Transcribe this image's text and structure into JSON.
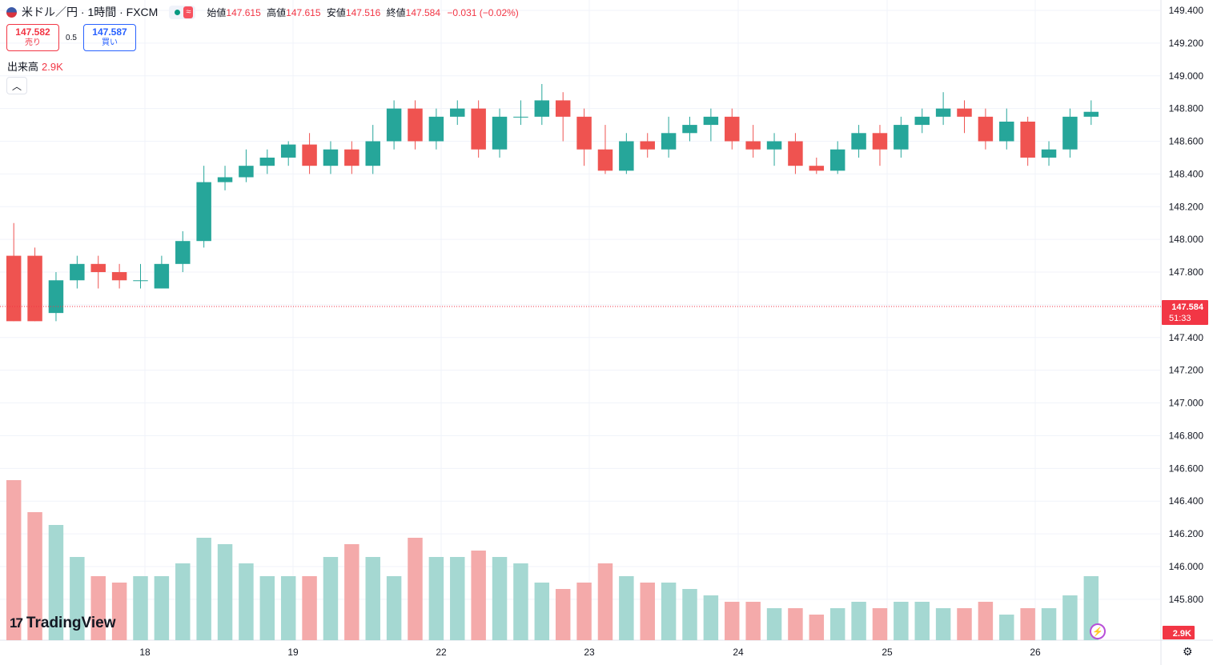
{
  "header": {
    "symbol": "米ドル／円 · 1時間 · FXCM",
    "badge": "≈",
    "ohlc": [
      {
        "label": "始値",
        "value": "147.615"
      },
      {
        "label": "高値",
        "value": "147.615"
      },
      {
        "label": "安値",
        "value": "147.516"
      },
      {
        "label": "終値",
        "value": "147.584"
      }
    ],
    "change": "−0.031 (−0.02%)"
  },
  "trade": {
    "sell_price": "147.582",
    "sell_label": "売り",
    "spread": "0.5",
    "buy_price": "147.587",
    "buy_label": "買い"
  },
  "volume_indicator": {
    "label": "出来高",
    "value": "2.9K"
  },
  "price_axis": {
    "labels": [
      "149.400",
      "149.200",
      "149.000",
      "148.800",
      "148.600",
      "148.400",
      "148.200",
      "148.000",
      "147.800",
      "147.600",
      "147.400",
      "147.200",
      "147.000",
      "146.800",
      "146.600",
      "146.400",
      "146.200",
      "146.000",
      "145.800"
    ],
    "current_price": "147.584",
    "countdown": "51:33",
    "volume_tag": "2.9K"
  },
  "time_axis": {
    "labels": [
      "18",
      "19",
      "22",
      "23",
      "24",
      "25",
      "26"
    ]
  },
  "logo": {
    "mark": "17",
    "text": "TradingView"
  },
  "colors": {
    "up": "#26a69a",
    "down": "#ef5350",
    "volume_up": "#a5d8d2",
    "volume_down": "#f4aaaa",
    "grid": "#f0f3fa",
    "accent": "#f23645"
  },
  "chart_data": {
    "type": "candlestick",
    "title": "米ドル／円 · 1時間 · FXCM",
    "ylim": [
      145.7,
      149.45
    ],
    "grid": true,
    "day_separators": [
      "18",
      "19",
      "22",
      "23",
      "24",
      "25",
      "26"
    ],
    "candles": [
      [
        147.9,
        147.5,
        148.1,
        147.5,
        2.5
      ],
      [
        147.9,
        147.5,
        147.95,
        147.5,
        2.0
      ],
      [
        147.55,
        147.75,
        147.8,
        147.5,
        1.8
      ],
      [
        147.75,
        147.85,
        147.9,
        147.7,
        1.3
      ],
      [
        147.85,
        147.8,
        147.9,
        147.7,
        1.0
      ],
      [
        147.8,
        147.75,
        147.85,
        147.7,
        0.9
      ],
      [
        147.75,
        147.75,
        147.85,
        147.7,
        1.0
      ],
      [
        147.7,
        147.85,
        147.9,
        147.7,
        1.0
      ],
      [
        147.85,
        147.99,
        148.05,
        147.8,
        1.2
      ],
      [
        147.99,
        148.35,
        148.45,
        147.95,
        1.6
      ],
      [
        148.35,
        148.38,
        148.45,
        148.3,
        1.5
      ],
      [
        148.38,
        148.45,
        148.55,
        148.35,
        1.2
      ],
      [
        148.45,
        148.5,
        148.55,
        148.4,
        1.0
      ],
      [
        148.5,
        148.58,
        148.6,
        148.45,
        1.0
      ],
      [
        148.58,
        148.45,
        148.65,
        148.4,
        1.0
      ],
      [
        148.45,
        148.55,
        148.6,
        148.4,
        1.3
      ],
      [
        148.55,
        148.45,
        148.6,
        148.4,
        1.5
      ],
      [
        148.45,
        148.6,
        148.7,
        148.4,
        1.3
      ],
      [
        148.6,
        148.8,
        148.85,
        148.55,
        1.0
      ],
      [
        148.8,
        148.6,
        148.85,
        148.55,
        1.6
      ],
      [
        148.6,
        148.75,
        148.8,
        148.55,
        1.3
      ],
      [
        148.75,
        148.8,
        148.85,
        148.7,
        1.3
      ],
      [
        148.8,
        148.55,
        148.85,
        148.5,
        1.4
      ],
      [
        148.55,
        148.75,
        148.8,
        148.5,
        1.3
      ],
      [
        148.75,
        148.75,
        148.85,
        148.7,
        1.2
      ],
      [
        148.75,
        148.85,
        148.95,
        148.7,
        0.9
      ],
      [
        148.85,
        148.75,
        148.9,
        148.6,
        0.8
      ],
      [
        148.75,
        148.55,
        148.8,
        148.45,
        0.9
      ],
      [
        148.55,
        148.42,
        148.7,
        148.4,
        1.2
      ],
      [
        148.42,
        148.6,
        148.65,
        148.4,
        1.0
      ],
      [
        148.6,
        148.55,
        148.65,
        148.5,
        0.9
      ],
      [
        148.55,
        148.65,
        148.75,
        148.5,
        0.9
      ],
      [
        148.65,
        148.7,
        148.75,
        148.6,
        0.8
      ],
      [
        148.7,
        148.75,
        148.8,
        148.6,
        0.7
      ],
      [
        148.75,
        148.6,
        148.8,
        148.55,
        0.6
      ],
      [
        148.6,
        148.55,
        148.7,
        148.5,
        0.6
      ],
      [
        148.55,
        148.6,
        148.65,
        148.45,
        0.5
      ],
      [
        148.6,
        148.45,
        148.65,
        148.4,
        0.5
      ],
      [
        148.45,
        148.42,
        148.5,
        148.4,
        0.4
      ],
      [
        148.42,
        148.55,
        148.6,
        148.4,
        0.5
      ],
      [
        148.55,
        148.65,
        148.7,
        148.5,
        0.6
      ],
      [
        148.65,
        148.55,
        148.7,
        148.45,
        0.5
      ],
      [
        148.55,
        148.7,
        148.75,
        148.5,
        0.6
      ],
      [
        148.7,
        148.75,
        148.8,
        148.65,
        0.6
      ],
      [
        148.75,
        148.8,
        148.9,
        148.7,
        0.5
      ],
      [
        148.8,
        148.75,
        148.85,
        148.65,
        0.5
      ],
      [
        148.75,
        148.6,
        148.8,
        148.55,
        0.6
      ],
      [
        148.6,
        148.72,
        148.8,
        148.55,
        0.4
      ],
      [
        148.72,
        148.5,
        148.75,
        148.45,
        0.5
      ],
      [
        148.5,
        148.55,
        148.6,
        148.45,
        0.5
      ],
      [
        148.55,
        148.75,
        148.8,
        148.5,
        0.7
      ],
      [
        148.75,
        148.78,
        148.85,
        148.7,
        1.0
      ]
    ]
  }
}
